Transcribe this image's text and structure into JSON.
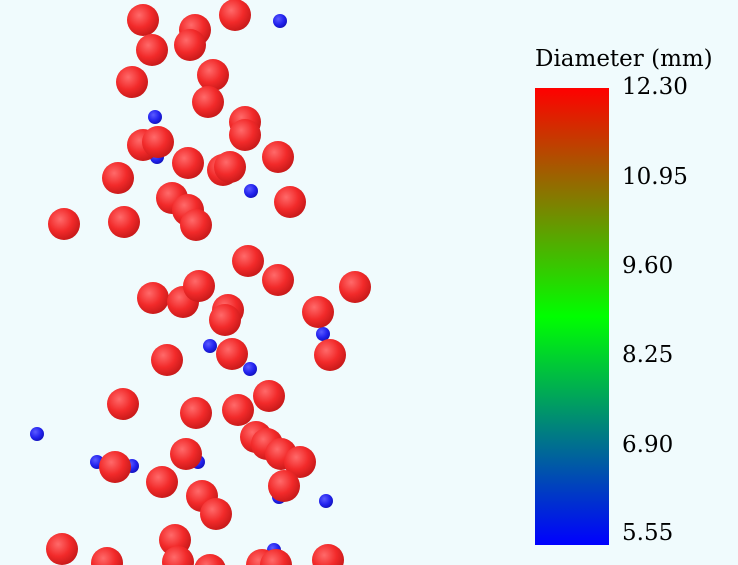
{
  "legend": {
    "title": "Diameter (mm)",
    "ticks": [
      "12.30",
      "10.95",
      "9.60",
      "8.25",
      "6.90",
      "5.55"
    ],
    "colors": {
      "max": "#ff0000",
      "mid": "#00ff00",
      "min": "#0000ff"
    }
  },
  "particles": {
    "large_color": "#ff2a2a",
    "small_color": "#1a1aff",
    "background": "#f0fbfd"
  }
}
